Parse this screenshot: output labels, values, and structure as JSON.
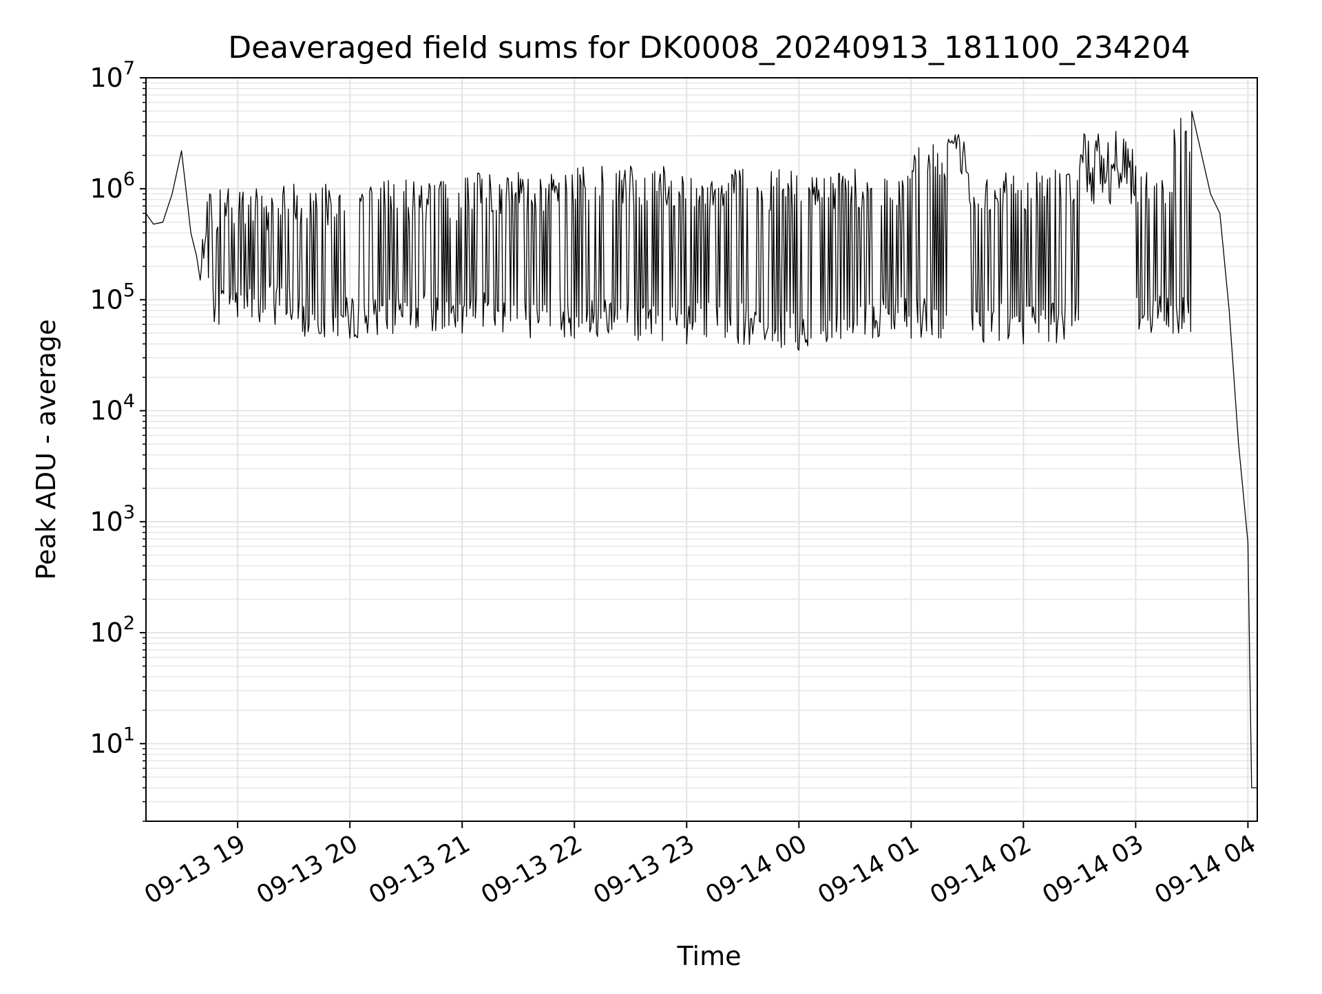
{
  "chart_data": {
    "type": "line",
    "title": "Deaveraged field sums for DK0008_20240913_181100_234204",
    "xlabel": "Time",
    "ylabel": "Peak ADU - average",
    "yscale": "log",
    "grid": "on (major and minor)",
    "xlim": [
      "2024-09-13 18:11",
      "2024-09-14 04:05"
    ],
    "ylim": [
      2,
      10000000
    ],
    "x_ticks": [
      "09-13 19",
      "09-13 20",
      "09-13 21",
      "09-13 22",
      "09-13 23",
      "09-14 00",
      "09-14 01",
      "09-14 02",
      "09-14 03",
      "09-14 04"
    ],
    "y_tick_exponents": [
      "1",
      "2",
      "3",
      "4",
      "5",
      "6",
      "7"
    ],
    "y_tick_base": "10",
    "series": [
      {
        "color": "#000000",
        "x": [
          "2024-09-13 18:11",
          "2024-09-13 18:15",
          "2024-09-13 18:20",
          "2024-09-13 18:25",
          "2024-09-13 18:30",
          "2024-09-13 18:35",
          "2024-09-13 18:38",
          "2024-09-13 18:40",
          "2024-09-13 18:45",
          "2024-09-13 18:50",
          "2024-09-13 18:55",
          "2024-09-13 19:00",
          "2024-09-13 19:10",
          "2024-09-13 19:20",
          "2024-09-13 19:30",
          "2024-09-13 20:00",
          "2024-09-13 20:30",
          "2024-09-13 21:00",
          "2024-09-13 21:30",
          "2024-09-13 22:00",
          "2024-09-13 22:30",
          "2024-09-13 23:00",
          "2024-09-13 23:30",
          "2024-09-14 00:00",
          "2024-09-14 00:30",
          "2024-09-14 01:00",
          "2024-09-14 01:20",
          "2024-09-14 01:30",
          "2024-09-14 02:00",
          "2024-09-14 02:30",
          "2024-09-14 03:00",
          "2024-09-14 03:20",
          "2024-09-14 03:30",
          "2024-09-14 03:40",
          "2024-09-14 03:45",
          "2024-09-14 03:50",
          "2024-09-14 03:55",
          "2024-09-14 04:00",
          "2024-09-14 04:02",
          "2024-09-14 04:03",
          "2024-09-14 04:05"
        ],
        "values": [
          600000,
          480000,
          500000,
          900000,
          2200000,
          400000,
          250000,
          150000,
          900000,
          60000,
          1000000,
          70000,
          1000000,
          60000,
          1100000,
          45000,
          1200000,
          50000,
          1400000,
          45000,
          1600000,
          40000,
          1500000,
          35000,
          1500000,
          45000,
          2800000,
          1400000,
          40000,
          1500000,
          1600000,
          50000,
          5000000,
          900000,
          600000,
          80000,
          5000,
          650,
          4,
          4,
          4
        ]
      }
    ]
  }
}
